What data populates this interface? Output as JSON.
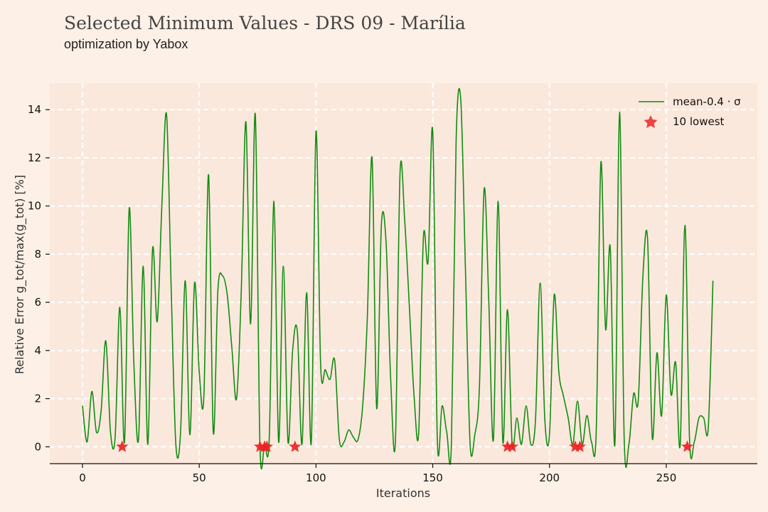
{
  "header": {
    "title": "Selected Minimum Values - DRS 09 - Marília",
    "subtitle": "optimization by Yabox"
  },
  "colors": {
    "background": "#fdf0e6",
    "plot_background": "#fbe8dc",
    "grid": "#ffffff",
    "line": "#128c12",
    "star": "#ee2222"
  },
  "chart_data": {
    "type": "line",
    "xlabel": "Iterations",
    "ylabel": "Relative Error g_tot/max(g_tot) [%]",
    "xlim": [
      -14,
      289
    ],
    "ylim": [
      -0.7,
      15.1
    ],
    "x_ticks": [
      "0",
      "50",
      "100",
      "150",
      "200",
      "250"
    ],
    "y_ticks": [
      "0",
      "2",
      "4",
      "6",
      "8",
      "10",
      "12",
      "14"
    ],
    "grid": true,
    "legend_position": "top-right",
    "series": [
      {
        "name": "mean-0.4 · σ",
        "kind": "line",
        "values": [
          1.7,
          0.2,
          2.3,
          0.6,
          1.5,
          4.4,
          0.6,
          0.4,
          5.8,
          0.2,
          9.9,
          3.5,
          0.3,
          7.5,
          0.1,
          8.2,
          5.2,
          10,
          13.8,
          6.5,
          0.1,
          0.6,
          6.9,
          0.5,
          6.8,
          3.1,
          2.1,
          11.3,
          0.6,
          6.5,
          7.1,
          6.3,
          4.1,
          2,
          6.5,
          13.5,
          5.1,
          13.8,
          0.1,
          0.1,
          0.4,
          10.2,
          0.2,
          7.5,
          0.2,
          4,
          4.8,
          0.1,
          6.4,
          0.2,
          13.1,
          3.4,
          3.2,
          2.8,
          3.6,
          0.3,
          0.2,
          0.7,
          0.4,
          0.3,
          1.7,
          5.4,
          12,
          1.6,
          9.2,
          8.5,
          2.8,
          0.2,
          11.4,
          9.4,
          5.8,
          2.1,
          0.6,
          8.7,
          7.7,
          13.1,
          0.2,
          1.7,
          0.6,
          0.1,
          12.7,
          14.4,
          7.4,
          0.1,
          0.5,
          2.5,
          10.7,
          6,
          0.3,
          10.2,
          0.2,
          5.7,
          0.1,
          1.2,
          0.1,
          1.7,
          0.1,
          1.1,
          6.8,
          1.1,
          0.5,
          6.3,
          3.1,
          2.1,
          1.2,
          0.1,
          1.9,
          0.1,
          1.3,
          0.2,
          0.6,
          11.8,
          4.9,
          8.3,
          0.1,
          13.9,
          0.3,
          0.1,
          2.2,
          1.9,
          7.1,
          8.6,
          0.4,
          3.9,
          1.3,
          6.3,
          2.2,
          3.5,
          0.1,
          9.2,
          0.2,
          0.2,
          1.2,
          1.2,
          0.8,
          6.9
        ],
        "x_step": 2
      },
      {
        "name": "10 lowest",
        "kind": "scatter",
        "x": [
          17,
          76,
          78,
          79,
          91,
          182,
          184,
          211,
          213,
          259
        ],
        "y": [
          0,
          0,
          0,
          0,
          0,
          0,
          0,
          0,
          0,
          0
        ]
      }
    ]
  }
}
